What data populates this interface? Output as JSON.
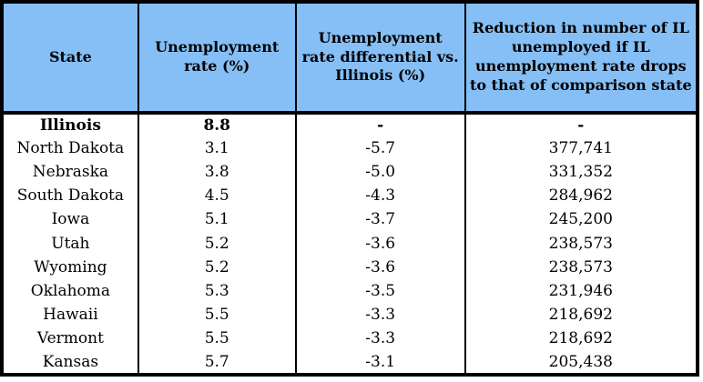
{
  "colors": {
    "header_bg": "#86BFF5",
    "border": "#000000",
    "body_bg": "#FFFFFF",
    "text": "#000000"
  },
  "chart_data": {
    "type": "table",
    "legend_position": "none",
    "grid": "column-separators-only",
    "columns": [
      "State",
      "Unemployment rate (%)",
      "Unemployment rate differential vs. Illinois (%)",
      "Reduction in number of IL unemployed if IL unemployment rate drops to that of comparison state"
    ],
    "rows": [
      {
        "state": "Illinois",
        "rate": "8.8",
        "differential": "-",
        "reduction": "-",
        "emphasis": true
      },
      {
        "state": "North Dakota",
        "rate": "3.1",
        "differential": "-5.7",
        "reduction": "377,741",
        "emphasis": false
      },
      {
        "state": "Nebraska",
        "rate": "3.8",
        "differential": "-5.0",
        "reduction": "331,352",
        "emphasis": false
      },
      {
        "state": "South Dakota",
        "rate": "4.5",
        "differential": "-4.3",
        "reduction": "284,962",
        "emphasis": false
      },
      {
        "state": "Iowa",
        "rate": "5.1",
        "differential": "-3.7",
        "reduction": "245,200",
        "emphasis": false
      },
      {
        "state": "Utah",
        "rate": "5.2",
        "differential": "-3.6",
        "reduction": "238,573",
        "emphasis": false
      },
      {
        "state": "Wyoming",
        "rate": "5.2",
        "differential": "-3.6",
        "reduction": "238,573",
        "emphasis": false
      },
      {
        "state": "Oklahoma",
        "rate": "5.3",
        "differential": "-3.5",
        "reduction": "231,946",
        "emphasis": false
      },
      {
        "state": "Hawaii",
        "rate": "5.5",
        "differential": "-3.3",
        "reduction": "218,692",
        "emphasis": false
      },
      {
        "state": "Vermont",
        "rate": "5.5",
        "differential": "-3.3",
        "reduction": "218,692",
        "emphasis": false
      },
      {
        "state": "Kansas",
        "rate": "5.7",
        "differential": "-3.1",
        "reduction": "205,438",
        "emphasis": false
      }
    ]
  }
}
